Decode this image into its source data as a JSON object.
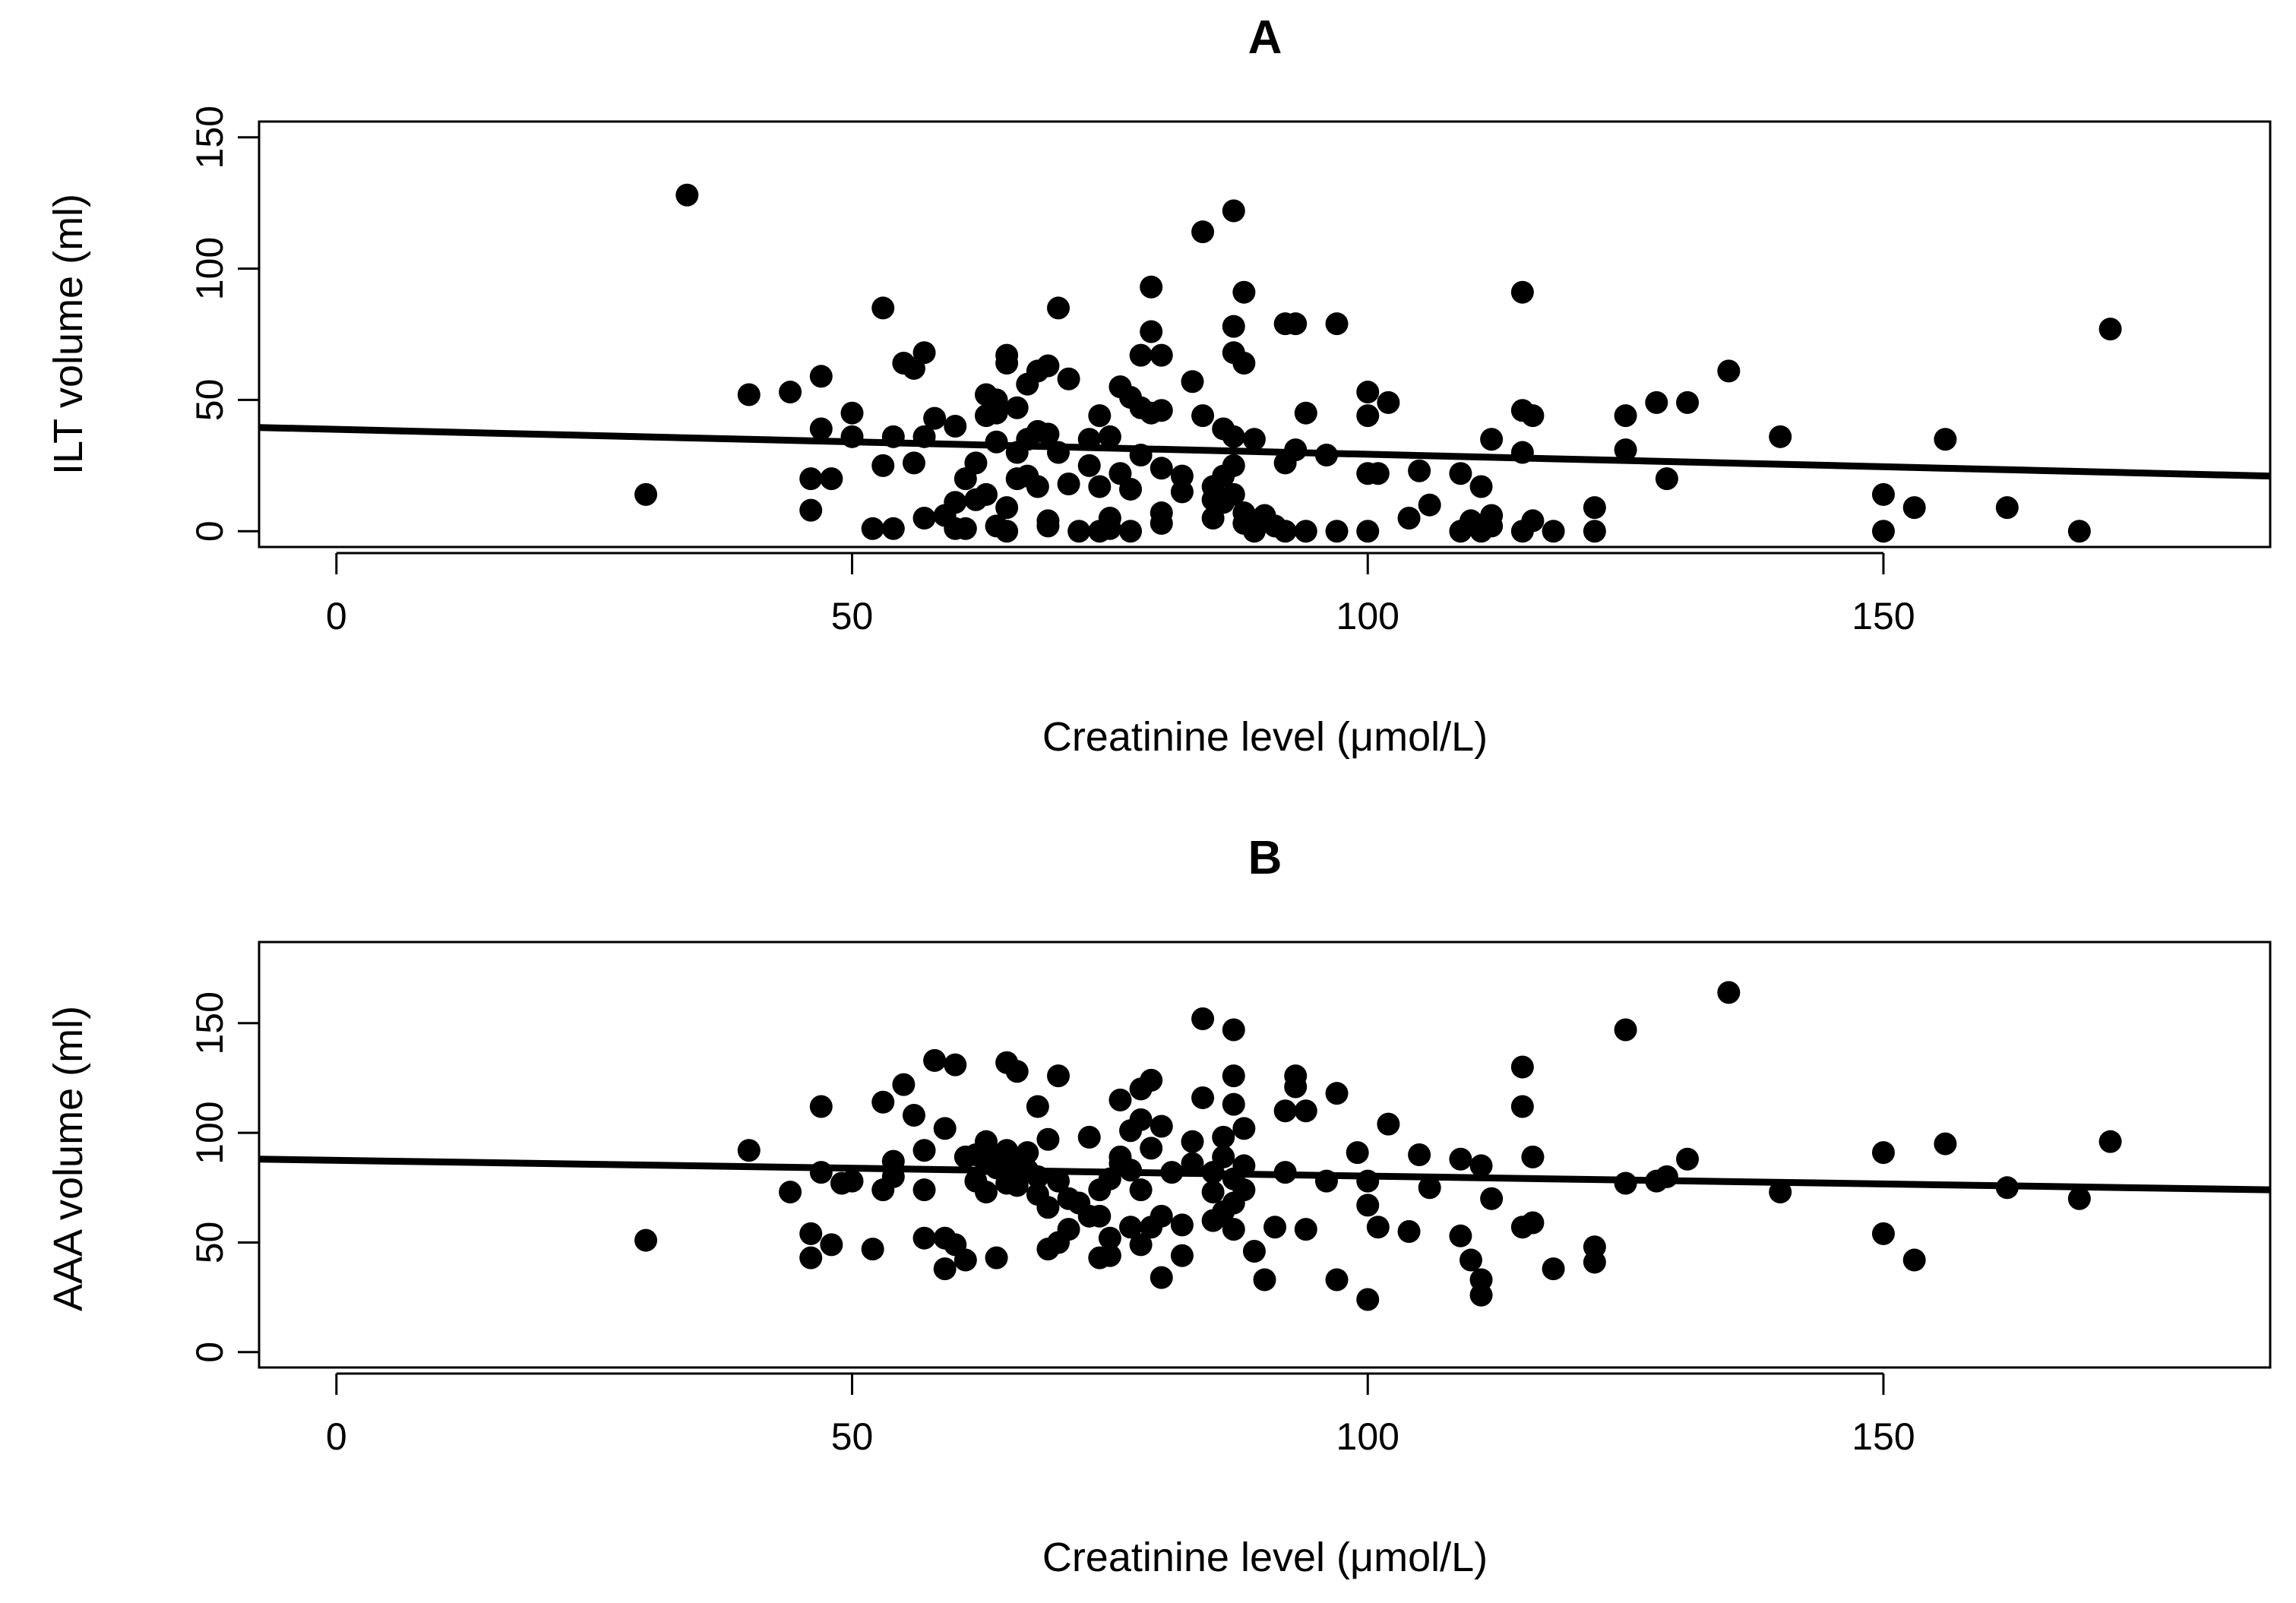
{
  "chart_data": [
    {
      "type": "scatter",
      "title": "A",
      "xlabel": "Creatinine level (μmol/L)",
      "ylabel": "ILT volume (ml)",
      "xlim": [
        -7.5,
        187.5
      ],
      "ylim": [
        -6,
        156
      ],
      "xticks": [
        "0",
        "50",
        "100",
        "150"
      ],
      "yticks": [
        "0",
        "50",
        "100",
        "150"
      ],
      "fit_line": {
        "x": [
          -7.5,
          187.5
        ],
        "y": [
          39.5,
          21
        ]
      },
      "points": [
        [
          30,
          14
        ],
        [
          34,
          128
        ],
        [
          40,
          52
        ],
        [
          44,
          53
        ],
        [
          46,
          20
        ],
        [
          46,
          8
        ],
        [
          47,
          59
        ],
        [
          47,
          39
        ],
        [
          48,
          20
        ],
        [
          50,
          45
        ],
        [
          50,
          36
        ],
        [
          52,
          1
        ],
        [
          53,
          25
        ],
        [
          53,
          85
        ],
        [
          54,
          36
        ],
        [
          54,
          1
        ],
        [
          55,
          64
        ],
        [
          56,
          26
        ],
        [
          56,
          62
        ],
        [
          57,
          68
        ],
        [
          57,
          36
        ],
        [
          57,
          5
        ],
        [
          58,
          43
        ],
        [
          59,
          6
        ],
        [
          60,
          1
        ],
        [
          60,
          11
        ],
        [
          60,
          40
        ],
        [
          61,
          20
        ],
        [
          61,
          1
        ],
        [
          62,
          12
        ],
        [
          62,
          26
        ],
        [
          63,
          52
        ],
        [
          63,
          44
        ],
        [
          63,
          14
        ],
        [
          64,
          45
        ],
        [
          64,
          34
        ],
        [
          64,
          2
        ],
        [
          64,
          50
        ],
        [
          65,
          64
        ],
        [
          65,
          67
        ],
        [
          65,
          9
        ],
        [
          65,
          0
        ],
        [
          66,
          47
        ],
        [
          66,
          30
        ],
        [
          66,
          20
        ],
        [
          67,
          35
        ],
        [
          67,
          21
        ],
        [
          67,
          56
        ],
        [
          68,
          17
        ],
        [
          68,
          38
        ],
        [
          68,
          61
        ],
        [
          69,
          2
        ],
        [
          69,
          63
        ],
        [
          69,
          37
        ],
        [
          69,
          4
        ],
        [
          70,
          85
        ],
        [
          70,
          30
        ],
        [
          71,
          58
        ],
        [
          71,
          18
        ],
        [
          72,
          0
        ],
        [
          73,
          25
        ],
        [
          73,
          35
        ],
        [
          74,
          0
        ],
        [
          74,
          17
        ],
        [
          74,
          44
        ],
        [
          75,
          5
        ],
        [
          75,
          1
        ],
        [
          75,
          36
        ],
        [
          76,
          55
        ],
        [
          76,
          22
        ],
        [
          77,
          0
        ],
        [
          77,
          16
        ],
        [
          77,
          51
        ],
        [
          78,
          67
        ],
        [
          78,
          47
        ],
        [
          78,
          29
        ],
        [
          79,
          76
        ],
        [
          79,
          93
        ],
        [
          79,
          45
        ],
        [
          80,
          24
        ],
        [
          80,
          67
        ],
        [
          80,
          46
        ],
        [
          80,
          7
        ],
        [
          80,
          3
        ],
        [
          82,
          21
        ],
        [
          82,
          15
        ],
        [
          83,
          57
        ],
        [
          84,
          114
        ],
        [
          84,
          44
        ],
        [
          85,
          17
        ],
        [
          85,
          5
        ],
        [
          85,
          12
        ],
        [
          86,
          39
        ],
        [
          86,
          21
        ],
        [
          86,
          11
        ],
        [
          87,
          122
        ],
        [
          87,
          78
        ],
        [
          87,
          68
        ],
        [
          87,
          36
        ],
        [
          87,
          14
        ],
        [
          87,
          25
        ],
        [
          88,
          91
        ],
        [
          88,
          64
        ],
        [
          88,
          7
        ],
        [
          88,
          3
        ],
        [
          89,
          35
        ],
        [
          89,
          0
        ],
        [
          90,
          6
        ],
        [
          91,
          2
        ],
        [
          92,
          79
        ],
        [
          92,
          26
        ],
        [
          92,
          0
        ],
        [
          93,
          79
        ],
        [
          93,
          31
        ],
        [
          94,
          45
        ],
        [
          94,
          0
        ],
        [
          96,
          29
        ],
        [
          97,
          79
        ],
        [
          97,
          0
        ],
        [
          100,
          53
        ],
        [
          100,
          44
        ],
        [
          100,
          22
        ],
        [
          100,
          0
        ],
        [
          101,
          22
        ],
        [
          102,
          49
        ],
        [
          104,
          5
        ],
        [
          105,
          23
        ],
        [
          106,
          10
        ],
        [
          109,
          22
        ],
        [
          109,
          0
        ],
        [
          110,
          4
        ],
        [
          111,
          17
        ],
        [
          111,
          0
        ],
        [
          112,
          35
        ],
        [
          112,
          6
        ],
        [
          112,
          2
        ],
        [
          115,
          91
        ],
        [
          115,
          46
        ],
        [
          115,
          30
        ],
        [
          115,
          0
        ],
        [
          116,
          44
        ],
        [
          116,
          4
        ],
        [
          118,
          0
        ],
        [
          122,
          9
        ],
        [
          122,
          0
        ],
        [
          125,
          44
        ],
        [
          125,
          31
        ],
        [
          128,
          49
        ],
        [
          129,
          20
        ],
        [
          131,
          49
        ],
        [
          135,
          61
        ],
        [
          140,
          36
        ],
        [
          150,
          14
        ],
        [
          150,
          0
        ],
        [
          153,
          9
        ],
        [
          156,
          35
        ],
        [
          162,
          9
        ],
        [
          169,
          0
        ],
        [
          172,
          77
        ]
      ]
    },
    {
      "type": "scatter",
      "title": "B",
      "xlabel": "Creatinine level (μmol/L)",
      "ylabel": "AAA volume (ml)",
      "xlim": [
        -7.5,
        187.5
      ],
      "ylim": [
        -7,
        187
      ],
      "xticks": [
        "0",
        "50",
        "100",
        "150"
      ],
      "yticks": [
        "0",
        "50",
        "100",
        "150"
      ],
      "fit_line": {
        "x": [
          -7.5,
          187.5
        ],
        "y": [
          88,
          74
        ]
      },
      "points": [
        [
          30,
          51
        ],
        [
          40,
          92
        ],
        [
          44,
          73
        ],
        [
          46,
          54
        ],
        [
          46,
          43
        ],
        [
          47,
          112
        ],
        [
          47,
          82
        ],
        [
          48,
          49
        ],
        [
          49,
          77
        ],
        [
          50,
          78
        ],
        [
          52,
          47
        ],
        [
          53,
          74
        ],
        [
          53,
          114
        ],
        [
          54,
          87
        ],
        [
          54,
          80
        ],
        [
          55,
          122
        ],
        [
          56,
          108
        ],
        [
          57,
          92
        ],
        [
          57,
          74
        ],
        [
          57,
          52
        ],
        [
          58,
          133
        ],
        [
          59,
          102
        ],
        [
          59,
          52
        ],
        [
          59,
          38
        ],
        [
          60,
          131
        ],
        [
          60,
          49
        ],
        [
          61,
          42
        ],
        [
          61,
          89
        ],
        [
          62,
          78
        ],
        [
          62,
          90
        ],
        [
          63,
          96
        ],
        [
          63,
          86
        ],
        [
          63,
          73
        ],
        [
          64,
          84
        ],
        [
          64,
          43
        ],
        [
          64,
          88
        ],
        [
          65,
          132
        ],
        [
          65,
          92
        ],
        [
          65,
          82
        ],
        [
          65,
          77
        ],
        [
          66,
          128
        ],
        [
          66,
          87
        ],
        [
          66,
          76
        ],
        [
          67,
          91
        ],
        [
          67,
          83
        ],
        [
          68,
          80
        ],
        [
          68,
          112
        ],
        [
          68,
          72
        ],
        [
          69,
          66
        ],
        [
          69,
          47
        ],
        [
          69,
          97
        ],
        [
          70,
          50
        ],
        [
          70,
          126
        ],
        [
          70,
          78
        ],
        [
          71,
          56
        ],
        [
          71,
          70
        ],
        [
          72,
          68
        ],
        [
          73,
          62
        ],
        [
          73,
          98
        ],
        [
          74,
          74
        ],
        [
          74,
          62
        ],
        [
          74,
          43
        ],
        [
          75,
          79
        ],
        [
          75,
          44
        ],
        [
          75,
          52
        ],
        [
          76,
          115
        ],
        [
          76,
          89
        ],
        [
          76,
          86
        ],
        [
          77,
          101
        ],
        [
          77,
          83
        ],
        [
          77,
          57
        ],
        [
          78,
          120
        ],
        [
          78,
          106
        ],
        [
          78,
          74
        ],
        [
          78,
          49
        ],
        [
          79,
          124
        ],
        [
          79,
          93
        ],
        [
          79,
          57
        ],
        [
          80,
          103
        ],
        [
          80,
          62
        ],
        [
          80,
          34
        ],
        [
          81,
          82
        ],
        [
          82,
          58
        ],
        [
          82,
          44
        ],
        [
          83,
          86
        ],
        [
          83,
          96
        ],
        [
          84,
          152
        ],
        [
          84,
          116
        ],
        [
          85,
          60
        ],
        [
          85,
          73
        ],
        [
          85,
          82
        ],
        [
          86,
          98
        ],
        [
          86,
          89
        ],
        [
          86,
          64
        ],
        [
          87,
          147
        ],
        [
          87,
          126
        ],
        [
          87,
          113
        ],
        [
          87,
          56
        ],
        [
          87,
          79
        ],
        [
          87,
          68
        ],
        [
          88,
          102
        ],
        [
          88,
          85
        ],
        [
          88,
          74
        ],
        [
          89,
          46
        ],
        [
          90,
          33
        ],
        [
          91,
          57
        ],
        [
          92,
          82
        ],
        [
          92,
          110
        ],
        [
          93,
          126
        ],
        [
          93,
          121
        ],
        [
          94,
          110
        ],
        [
          94,
          56
        ],
        [
          96,
          78
        ],
        [
          97,
          118
        ],
        [
          97,
          33
        ],
        [
          99,
          91
        ],
        [
          100,
          78
        ],
        [
          100,
          67
        ],
        [
          100,
          24
        ],
        [
          101,
          57
        ],
        [
          102,
          104
        ],
        [
          104,
          55
        ],
        [
          105,
          90
        ],
        [
          106,
          75
        ],
        [
          109,
          88
        ],
        [
          109,
          53
        ],
        [
          110,
          42
        ],
        [
          111,
          85
        ],
        [
          111,
          33
        ],
        [
          111,
          26
        ],
        [
          112,
          70
        ],
        [
          115,
          130
        ],
        [
          115,
          112
        ],
        [
          115,
          57
        ],
        [
          116,
          89
        ],
        [
          116,
          59
        ],
        [
          118,
          38
        ],
        [
          122,
          48
        ],
        [
          122,
          41
        ],
        [
          125,
          147
        ],
        [
          125,
          77
        ],
        [
          128,
          78
        ],
        [
          129,
          80
        ],
        [
          131,
          88
        ],
        [
          135,
          164
        ],
        [
          140,
          73
        ],
        [
          150,
          91
        ],
        [
          150,
          54
        ],
        [
          153,
          42
        ],
        [
          156,
          95
        ],
        [
          162,
          75
        ],
        [
          169,
          70
        ],
        [
          172,
          96
        ]
      ]
    }
  ]
}
